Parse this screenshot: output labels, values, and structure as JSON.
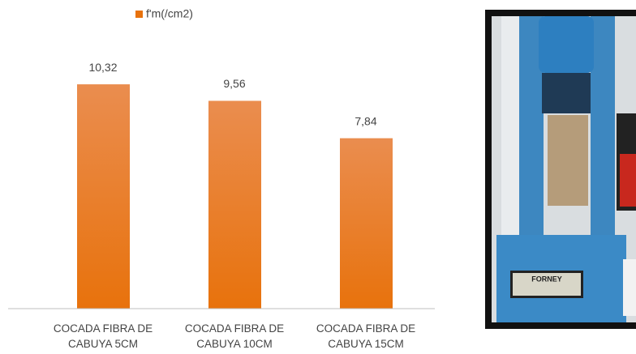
{
  "chart_data": {
    "type": "bar",
    "legend": "f'm(/cm2)",
    "categories": [
      "COCADA FIBRA DE CABUYA 5CM",
      "COCADA FIBRA DE CABUYA 10CM",
      "COCADA FIBRA DE CABUYA 15CM"
    ],
    "values": [
      10.32,
      9.56,
      7.84
    ],
    "value_labels": [
      "10,32",
      "9,56",
      "7,84"
    ],
    "color": "#e8720c",
    "ylim": [
      0,
      12
    ]
  },
  "image_text": "FORNEY"
}
